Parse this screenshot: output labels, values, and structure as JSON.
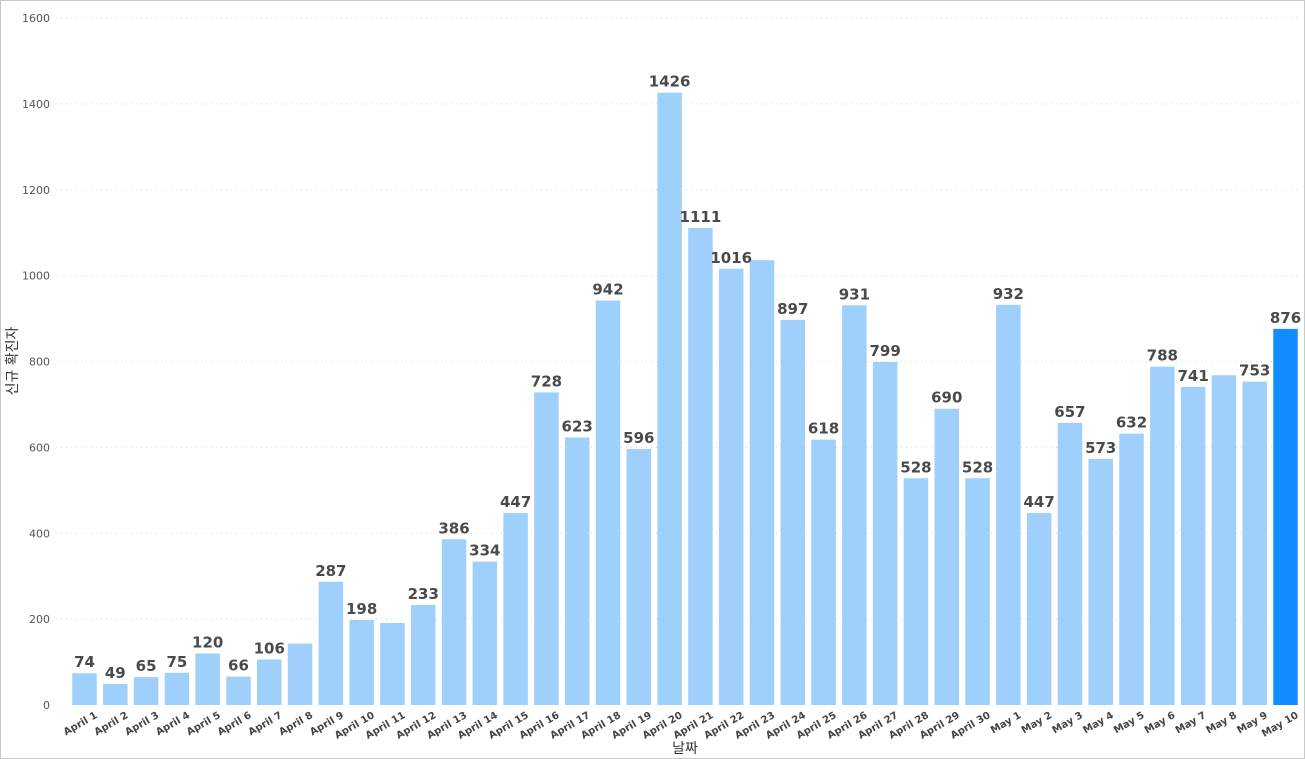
{
  "chart_data": {
    "type": "bar",
    "xlabel": "날짜",
    "ylabel": "신규 확진자",
    "ylim": [
      0,
      1600
    ],
    "yticks": [
      0,
      200,
      400,
      600,
      800,
      1000,
      1200,
      1400,
      1600
    ],
    "grid": true,
    "colors": {
      "bar": "#9fcffb",
      "highlight": "#118dff"
    },
    "highlight_category": "May 10",
    "categories": [
      "April 1",
      "April 2",
      "April 3",
      "April 4",
      "April 5",
      "April 6",
      "April 7",
      "April 8",
      "April 9",
      "April 10",
      "April 11",
      "April 12",
      "April 13",
      "April 14",
      "April 15",
      "April 16",
      "April 17",
      "April 18",
      "April 19",
      "April 20",
      "April 21",
      "April 22",
      "April 23",
      "April 24",
      "April 25",
      "April 26",
      "April 27",
      "April 28",
      "April 29",
      "April 30",
      "May 1",
      "May 2",
      "May 3",
      "May 4",
      "May 5",
      "May 6",
      "May 7",
      "May 8",
      "May 9",
      "May 10"
    ],
    "values": [
      74,
      49,
      65,
      75,
      120,
      66,
      106,
      143,
      287,
      198,
      191,
      233,
      386,
      334,
      447,
      728,
      623,
      942,
      596,
      1426,
      1111,
      1016,
      1036,
      897,
      618,
      931,
      799,
      528,
      690,
      528,
      932,
      447,
      657,
      573,
      632,
      788,
      741,
      768,
      753,
      876
    ],
    "data_labels": [
      "74",
      "49",
      "65",
      "75",
      "120",
      "66",
      "106",
      "",
      "287",
      "198",
      "",
      "233",
      "386",
      "334",
      "447",
      "728",
      "623",
      "942",
      "596",
      "1426",
      "1111",
      "1016",
      "",
      "897",
      "618",
      "931",
      "799",
      "528",
      "690",
      "528",
      "932",
      "447",
      "657",
      "573",
      "632",
      "788",
      "741",
      "",
      "753",
      "876"
    ]
  }
}
